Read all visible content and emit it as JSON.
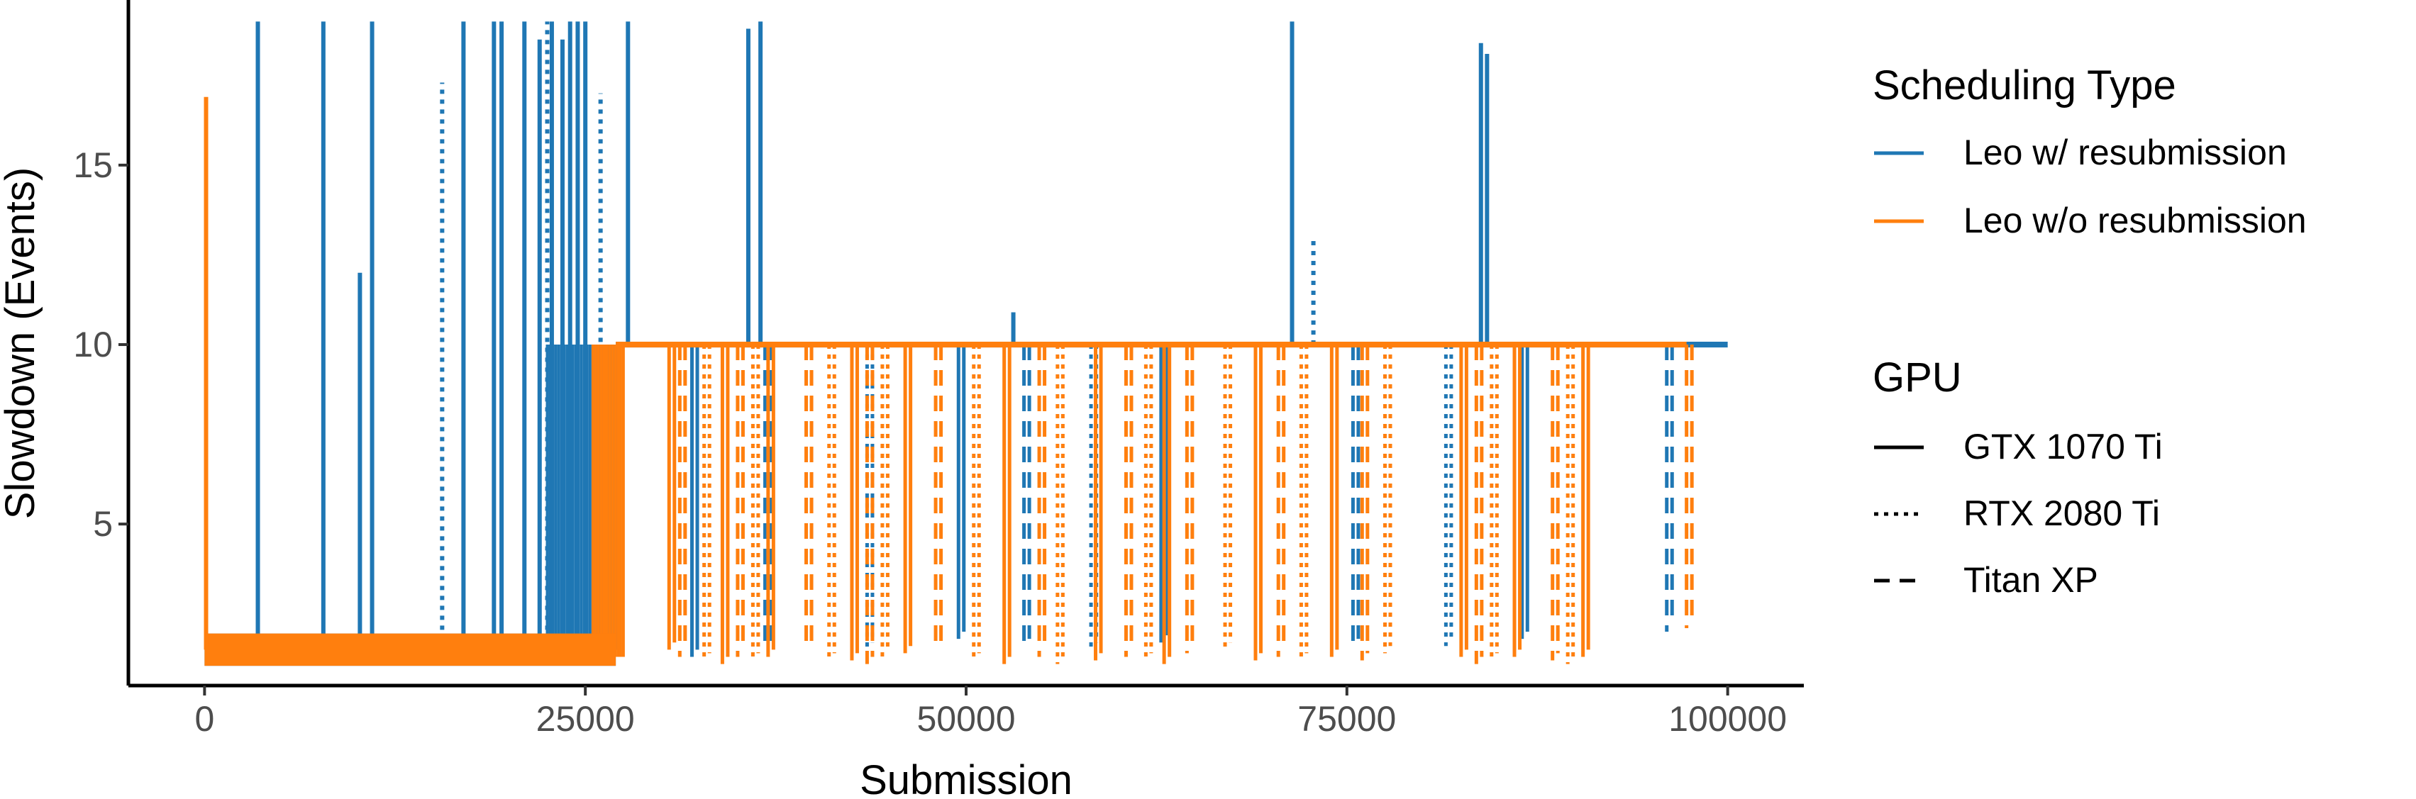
{
  "chart_data": {
    "type": "line",
    "title": "",
    "xlabel": "Submission",
    "ylabel": "Slowdown (Events)",
    "xlim": [
      -5000,
      105000
    ],
    "ylim": [
      0.5,
      19.6
    ],
    "x_ticks": [
      0,
      25000,
      50000,
      75000,
      100000
    ],
    "x_tick_labels": [
      "0",
      "25000",
      "50000",
      "75000",
      "100000"
    ],
    "y_ticks": [
      5,
      10,
      15
    ],
    "y_tick_labels": [
      "5",
      "10",
      "15"
    ],
    "grid": false,
    "legend_position": "right",
    "colors": {
      "Leo w/ resubmission": "#1f77b4",
      "Leo w/o resubmission": "#ff7f0e"
    },
    "legends": [
      {
        "title": "Scheduling Type",
        "entries": [
          {
            "label": "Leo w/ resubmission",
            "color": "#1f77b4",
            "linetype": "solid"
          },
          {
            "label": "Leo w/o resubmission",
            "color": "#ff7f0e",
            "linetype": "solid"
          }
        ]
      },
      {
        "title": "GPU",
        "entries": [
          {
            "label": "GTX 1070 Ti",
            "color": "#000000",
            "linetype": "solid"
          },
          {
            "label": "RTX 2080 Ti",
            "color": "#000000",
            "linetype": "dotted"
          },
          {
            "label": "Titan XP",
            "color": "#000000",
            "linetype": "dashed"
          }
        ]
      }
    ],
    "series": [
      {
        "scheduling": "Leo w/ resubmission",
        "color": "#1f77b4",
        "baseline": [
          {
            "x_start": 0,
            "x_end": 27000,
            "level": 1.5
          },
          {
            "x_start": 27000,
            "x_end": 100000,
            "level": 10
          }
        ],
        "spikes": [
          {
            "x": 3500,
            "y": 19
          },
          {
            "x": 7800,
            "y": 19
          },
          {
            "x": 10200,
            "y": 12
          },
          {
            "x": 11000,
            "y": 19
          },
          {
            "x": 15600,
            "y": 17.3
          },
          {
            "x": 17000,
            "y": 19
          },
          {
            "x": 19000,
            "y": 19
          },
          {
            "x": 19500,
            "y": 19
          },
          {
            "x": 21000,
            "y": 19
          },
          {
            "x": 22000,
            "y": 18.5
          },
          {
            "x": 22500,
            "y": 19
          },
          {
            "x": 22800,
            "y": 19
          },
          {
            "x": 23500,
            "y": 18.5
          },
          {
            "x": 24000,
            "y": 19
          },
          {
            "x": 24500,
            "y": 19
          },
          {
            "x": 25000,
            "y": 19
          },
          {
            "x": 26000,
            "y": 17
          },
          {
            "x": 27800,
            "y": 19
          },
          {
            "x": 35700,
            "y": 18.8
          },
          {
            "x": 36500,
            "y": 19
          },
          {
            "x": 53100,
            "y": 10.9
          },
          {
            "x": 71400,
            "y": 19
          },
          {
            "x": 72800,
            "y": 13
          },
          {
            "x": 83800,
            "y": 18.4
          },
          {
            "x": 84200,
            "y": 18.1
          }
        ],
        "dips": [
          {
            "x": 32000,
            "y": 1.3
          },
          {
            "x": 36800,
            "y": 1.5
          },
          {
            "x": 43500,
            "y": 1.5
          },
          {
            "x": 49500,
            "y": 1.8
          },
          {
            "x": 53800,
            "y": 1.6
          },
          {
            "x": 58200,
            "y": 1.5
          },
          {
            "x": 62800,
            "y": 1.7
          },
          {
            "x": 75400,
            "y": 1.6
          },
          {
            "x": 81500,
            "y": 1.6
          },
          {
            "x": 86500,
            "y": 1.8
          },
          {
            "x": 96000,
            "y": 2
          }
        ],
        "dense_band": {
          "x_start": 22500,
          "x_end": 27000,
          "y_low": 1.5,
          "y_high": 10
        }
      },
      {
        "scheduling": "Leo w/o resubmission",
        "color": "#ff7f0e",
        "initial_peak": {
          "x": 100,
          "y": 16.9
        },
        "baseline": [
          {
            "x_start": 0,
            "x_end": 27000,
            "level": 1.5
          },
          {
            "x_start": 27000,
            "x_end": 97300,
            "level": 10
          }
        ],
        "dips": [
          {
            "x": 30500,
            "y": 1.5
          },
          {
            "x": 31200,
            "y": 1.3
          },
          {
            "x": 32800,
            "y": 1.2
          },
          {
            "x": 34000,
            "y": 1.1
          },
          {
            "x": 35000,
            "y": 1.3
          },
          {
            "x": 36000,
            "y": 1.2
          },
          {
            "x": 37000,
            "y": 1.3
          },
          {
            "x": 39500,
            "y": 1.5
          },
          {
            "x": 41000,
            "y": 1.2
          },
          {
            "x": 42500,
            "y": 1.2
          },
          {
            "x": 43500,
            "y": 1.1
          },
          {
            "x": 44500,
            "y": 1.3
          },
          {
            "x": 46000,
            "y": 1.4
          },
          {
            "x": 48000,
            "y": 1.5
          },
          {
            "x": 50500,
            "y": 1.2
          },
          {
            "x": 52500,
            "y": 1.1
          },
          {
            "x": 54800,
            "y": 1.3
          },
          {
            "x": 56000,
            "y": 1.1
          },
          {
            "x": 58500,
            "y": 1.2
          },
          {
            "x": 60500,
            "y": 1.3
          },
          {
            "x": 61800,
            "y": 1.2
          },
          {
            "x": 63000,
            "y": 1.1
          },
          {
            "x": 64500,
            "y": 1.4
          },
          {
            "x": 67000,
            "y": 1.5
          },
          {
            "x": 69000,
            "y": 1.2
          },
          {
            "x": 70500,
            "y": 1.3
          },
          {
            "x": 72000,
            "y": 1.2
          },
          {
            "x": 74000,
            "y": 1.3
          },
          {
            "x": 76000,
            "y": 1.2
          },
          {
            "x": 77500,
            "y": 1.4
          },
          {
            "x": 82500,
            "y": 1.3
          },
          {
            "x": 83500,
            "y": 1.1
          },
          {
            "x": 84500,
            "y": 1.2
          },
          {
            "x": 86000,
            "y": 1.3
          },
          {
            "x": 88500,
            "y": 1.2
          },
          {
            "x": 89500,
            "y": 1.1
          },
          {
            "x": 90500,
            "y": 1.3
          },
          {
            "x": 97300,
            "y": 2.1
          }
        ],
        "dense_band": {
          "x_start": 25500,
          "x_end": 27500,
          "y_low": 1.3,
          "y_high": 10
        }
      }
    ]
  }
}
